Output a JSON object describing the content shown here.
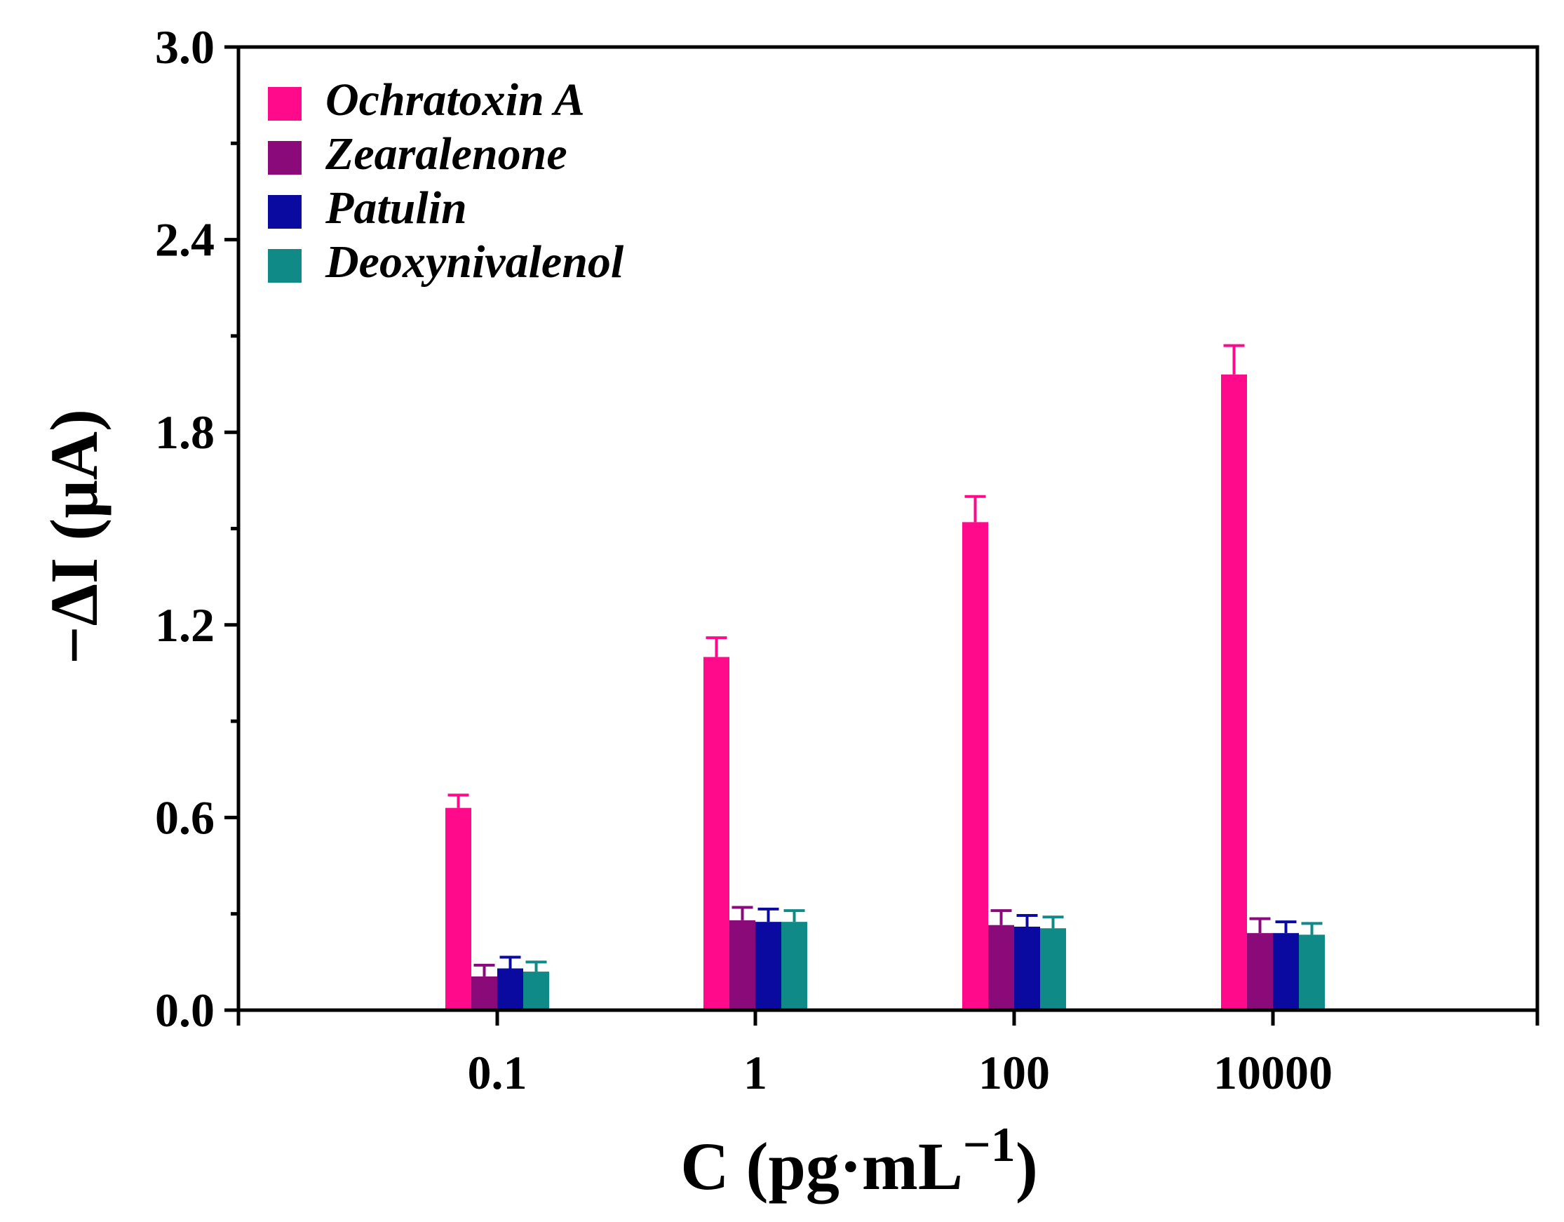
{
  "chart_data": {
    "type": "bar",
    "title": "",
    "xlabel": {
      "main": "C (pg·mL",
      "superscript": "−1",
      "close": ")"
    },
    "ylabel": "−ΔI (μA)",
    "ylim": [
      0,
      3.0
    ],
    "yticks": [
      "0.0",
      "0.6",
      "1.2",
      "1.8",
      "2.4",
      "3.0"
    ],
    "ytick_values": [
      0,
      0.6,
      1.2,
      1.8,
      2.4,
      3.0
    ],
    "categories": [
      "0.1",
      "1",
      "100",
      "10000"
    ],
    "series": [
      {
        "name": "Ochratoxin A",
        "color": "#ff0a8a",
        "values": [
          0.63,
          1.1,
          1.52,
          1.98
        ],
        "errors": [
          0.04,
          0.06,
          0.08,
          0.09
        ]
      },
      {
        "name": "Zearalenone",
        "color": "#8b0a7a",
        "values": [
          0.105,
          0.28,
          0.265,
          0.24
        ],
        "errors": [
          0.035,
          0.04,
          0.045,
          0.045
        ]
      },
      {
        "name": "Patulin",
        "color": "#0a0aa0",
        "values": [
          0.13,
          0.275,
          0.26,
          0.24
        ],
        "errors": [
          0.035,
          0.04,
          0.035,
          0.035
        ]
      },
      {
        "name": "Deoxynivalenol",
        "color": "#0f8a86",
        "values": [
          0.12,
          0.275,
          0.255,
          0.235
        ],
        "errors": [
          0.03,
          0.035,
          0.035,
          0.035
        ]
      }
    ],
    "legend_position": "top-left",
    "grid": false
  }
}
